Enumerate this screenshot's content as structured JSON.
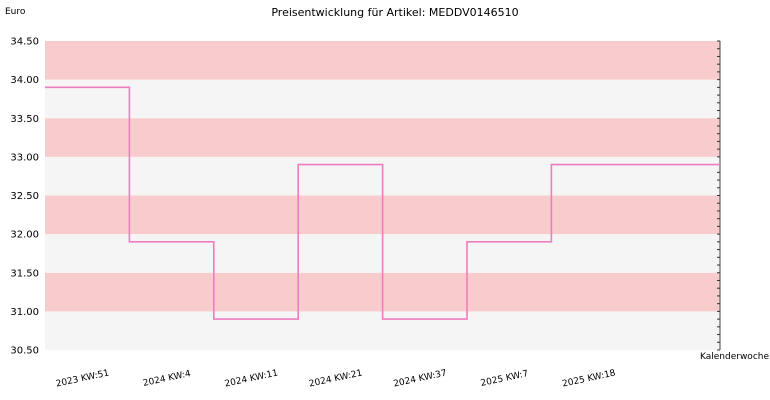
{
  "chart_data": {
    "type": "line",
    "step": true,
    "title": "Preisentwicklung für Artikel: MEDDV0146510",
    "ylabel": "Euro",
    "xlabel": "Kalenderwoche",
    "ylim": [
      30.5,
      34.5
    ],
    "yticks": [
      "30.50",
      "31.00",
      "31.50",
      "32.00",
      "32.50",
      "33.00",
      "33.50",
      "34.00",
      "34.50"
    ],
    "categories": [
      "2023 KW:51",
      "2024 KW:4",
      "2024 KW:11",
      "2024 KW:21",
      "2024 KW:37",
      "2025 KW:7",
      "2025 KW:18"
    ],
    "values": [
      33.9,
      31.9,
      30.9,
      32.9,
      30.9,
      31.9,
      32.9
    ],
    "grid": true,
    "colors": {
      "band": "#f8cccc",
      "band_alt": "#f5f5f5",
      "line": "#f07cc0"
    }
  }
}
